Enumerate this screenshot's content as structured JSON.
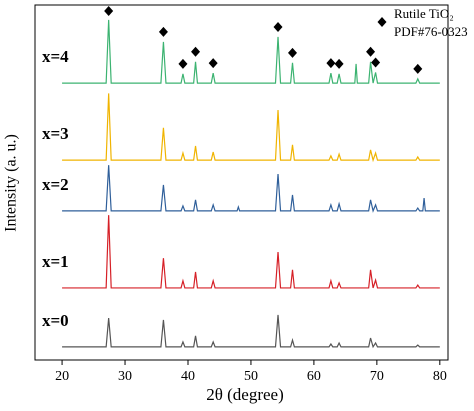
{
  "chart_data": {
    "type": "line",
    "x_label": "2θ (degree)",
    "y_label": "Intensity (a. u.)",
    "x": [
      20,
      27.0,
      27.4,
      27.8,
      35.7,
      36.1,
      36.5,
      38.9,
      39.2,
      39.5,
      40.9,
      41.2,
      41.5,
      43.7,
      44.0,
      44.3,
      47.8,
      48.0,
      48.2,
      53.9,
      54.3,
      54.7,
      56.3,
      56.6,
      56.9,
      62.4,
      62.7,
      63.0,
      63.7,
      64.0,
      64.3,
      66.5,
      66.7,
      66.9,
      68.7,
      69.0,
      69.4,
      69.8,
      70.1,
      76.2,
      76.5,
      76.8,
      77.3,
      77.5,
      77.7,
      80
    ],
    "series": [
      {
        "name": "x=4",
        "color": "#3cb371",
        "values": [
          78.0,
          78.0,
          95.8,
          78.0,
          78.0,
          89.6,
          78.0,
          78.0,
          80.6,
          78.0,
          78.0,
          84.0,
          78.0,
          78.0,
          80.8,
          78.0,
          78.0,
          78.0,
          78.0,
          78.0,
          91.0,
          78.0,
          78.0,
          83.7,
          78.0,
          78.0,
          80.8,
          78.0,
          78.0,
          80.6,
          78.0,
          78.0,
          83.4,
          78.0,
          78.0,
          84.0,
          78.0,
          81.0,
          78.0,
          78.0,
          79.2,
          78.0,
          78.0,
          78.0,
          78.0,
          78.0
        ]
      },
      {
        "name": "x=3",
        "color": "#f0b400",
        "values": [
          56.3,
          56.3,
          75.1,
          56.3,
          56.3,
          65.4,
          56.3,
          56.3,
          58.3,
          56.3,
          56.3,
          60.3,
          56.3,
          56.3,
          58.6,
          56.3,
          56.3,
          56.3,
          56.3,
          56.3,
          70.4,
          56.3,
          56.3,
          60.6,
          56.3,
          56.3,
          57.5,
          56.3,
          56.3,
          58.0,
          56.3,
          56.3,
          56.3,
          56.3,
          56.3,
          59.2,
          56.3,
          58.3,
          56.3,
          56.3,
          57.2,
          56.3,
          56.3,
          56.3,
          56.3,
          56.3
        ]
      },
      {
        "name": "x=2",
        "color": "#2f5f9a",
        "values": [
          42.0,
          42.0,
          54.9,
          42.0,
          42.0,
          49.3,
          42.0,
          42.0,
          43.4,
          42.0,
          42.0,
          45.1,
          42.0,
          42.0,
          43.7,
          42.0,
          42.0,
          43.1,
          42.0,
          42.0,
          52.4,
          42.0,
          42.0,
          46.5,
          42.0,
          42.0,
          43.7,
          42.0,
          42.0,
          44.0,
          42.0,
          42.0,
          42.0,
          42.0,
          42.0,
          45.1,
          42.0,
          43.7,
          42.0,
          42.0,
          42.8,
          42.0,
          42.0,
          45.6,
          42.0,
          42.0
        ]
      },
      {
        "name": "x=1",
        "color": "#d62027",
        "values": [
          20.3,
          20.3,
          40.8,
          20.3,
          20.3,
          28.7,
          20.3,
          20.3,
          22.3,
          20.3,
          20.3,
          24.8,
          20.3,
          20.3,
          22.3,
          20.3,
          20.3,
          20.3,
          20.3,
          20.3,
          30.4,
          20.3,
          20.3,
          25.4,
          20.3,
          20.3,
          22.3,
          20.3,
          20.3,
          21.7,
          20.3,
          20.3,
          20.3,
          20.3,
          20.3,
          25.4,
          20.3,
          22.5,
          20.3,
          20.3,
          21.1,
          20.3,
          20.3,
          20.3,
          20.3,
          20.3
        ]
      },
      {
        "name": "x=0",
        "color": "#555555",
        "values": [
          3.7,
          3.7,
          11.8,
          3.7,
          3.7,
          11.3,
          3.7,
          3.7,
          5.1,
          3.7,
          3.7,
          6.8,
          3.7,
          3.7,
          5.1,
          3.7,
          3.7,
          3.7,
          3.7,
          3.7,
          12.7,
          3.7,
          3.7,
          5.6,
          3.7,
          3.7,
          4.5,
          3.7,
          3.7,
          4.8,
          3.7,
          3.7,
          3.7,
          3.7,
          3.7,
          6.2,
          3.7,
          4.8,
          3.7,
          3.7,
          4.2,
          3.7,
          3.7,
          3.7,
          3.7,
          3.7
        ]
      }
    ],
    "reference": {
      "name": "Rutile TiO₂",
      "card": "PDF#76-0323",
      "x": [
        27.4,
        36.1,
        39.2,
        41.2,
        44.0,
        54.3,
        56.6,
        62.7,
        64.0,
        69.0,
        69.8,
        76.5
      ]
    },
    "xlim": [
      15.7,
      81.3
    ],
    "xticks": [
      20,
      30,
      40,
      50,
      60,
      70,
      80
    ],
    "ylim": [
      0,
      100
    ]
  }
}
